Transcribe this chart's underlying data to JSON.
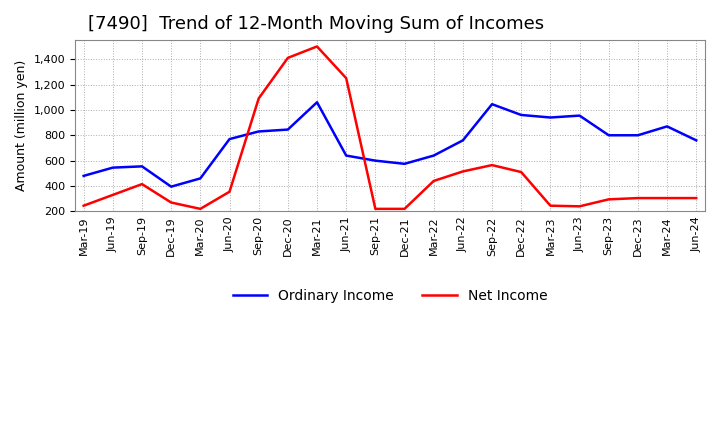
{
  "title": "[7490]  Trend of 12-Month Moving Sum of Incomes",
  "ylabel": "Amount (million yen)",
  "ordinary_income": {
    "labels": [
      "Mar-19",
      "Jun-19",
      "Sep-19",
      "Dec-19",
      "Mar-20",
      "Jun-20",
      "Sep-20",
      "Dec-20",
      "Mar-21",
      "Jun-21",
      "Sep-21",
      "Dec-21",
      "Mar-22",
      "Jun-22",
      "Sep-22",
      "Dec-22",
      "Mar-23",
      "Jun-23",
      "Sep-23",
      "Dec-23",
      "Mar-24",
      "Jun-24"
    ],
    "values": [
      480,
      545,
      555,
      395,
      460,
      770,
      830,
      845,
      1060,
      640,
      600,
      575,
      640,
      760,
      1045,
      960,
      940,
      955,
      800,
      800,
      870,
      760
    ]
  },
  "net_income": {
    "labels": [
      "Mar-19",
      "Jun-19",
      "Sep-19",
      "Dec-19",
      "Mar-20",
      "Jun-20",
      "Sep-20",
      "Dec-20",
      "Mar-21",
      "Jun-21",
      "Sep-21",
      "Dec-21",
      "Mar-22",
      "Jun-22",
      "Sep-22",
      "Dec-22",
      "Mar-23",
      "Jun-23",
      "Sep-23",
      "Dec-23",
      "Mar-24",
      "Jun-24"
    ],
    "values": [
      245,
      330,
      415,
      270,
      220,
      355,
      1090,
      1410,
      1500,
      1250,
      220,
      220,
      440,
      515,
      565,
      510,
      245,
      240,
      295,
      305,
      305,
      305
    ]
  },
  "ordinary_color": "#0000ff",
  "net_color": "#ff0000",
  "ylim": [
    200,
    1550
  ],
  "yticks": [
    200,
    400,
    600,
    800,
    1000,
    1200,
    1400
  ],
  "background_color": "#ffffff",
  "grid_color": "#999999",
  "title_fontsize": 13,
  "axis_fontsize": 9,
  "tick_fontsize": 8,
  "legend_fontsize": 10
}
